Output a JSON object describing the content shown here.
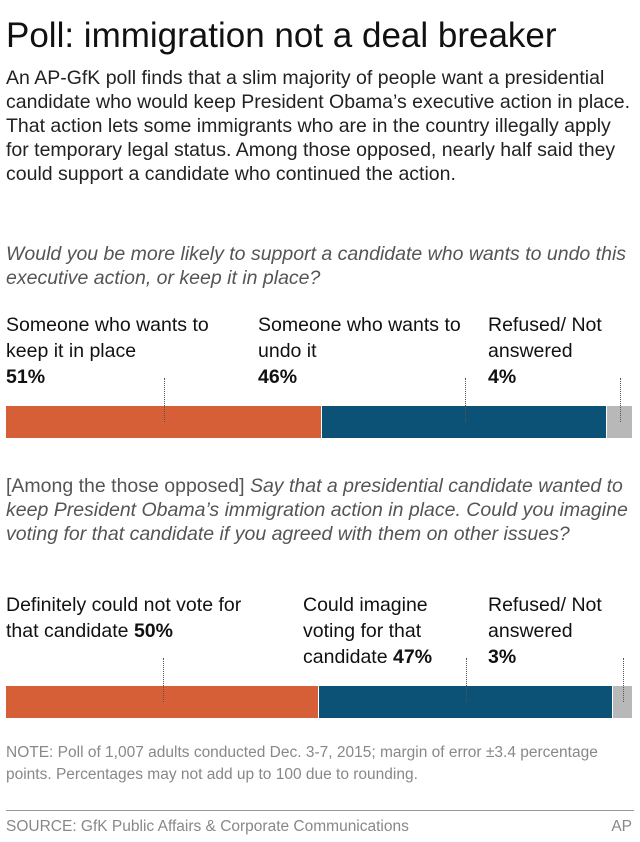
{
  "title": "Poll: immigration not a deal breaker",
  "intro": "An AP-GfK poll finds that a slim majority of people want a presidential candidate who would keep President Obama’s executive action in place. That action lets some immigrants who are in the country illegally apply for temporary legal status. Among those opposed, nearly half said they could support a candidate who continued the action.",
  "chart_data": [
    {
      "type": "stacked-bar",
      "question": "Would you be more likely to support a candidate who wants to undo this executive action, or keep it in place?",
      "series": [
        {
          "name": "Someone who wants to keep it in place",
          "color": "#d65f38",
          "values": [
            51
          ],
          "value_labels": [
            "51%"
          ]
        },
        {
          "name": "Someone who wants to undo it",
          "color": "#0c5276",
          "values": [
            46
          ],
          "value_labels": [
            "46%"
          ]
        },
        {
          "name": "Refused/ Not answered",
          "color": "#b8b8b8",
          "values": [
            4
          ],
          "value_labels": [
            "4%"
          ]
        }
      ]
    },
    {
      "type": "stacked-bar",
      "question_prefix": "[Among the those opposed]",
      "question": "Say that a presidential candidate wanted to keep President Obama’s immigration action in place. Could you imagine voting for that candidate if you agreed with them on other issues?",
      "series": [
        {
          "name": "Definitely could not vote for that candidate",
          "color": "#d65f38",
          "values": [
            50
          ],
          "value_labels": [
            "50%"
          ]
        },
        {
          "name": "Could imagine voting for that candidate",
          "color": "#0c5276",
          "values": [
            47
          ],
          "value_labels": [
            "47%"
          ]
        },
        {
          "name": "Refused/ Not answered",
          "color": "#b8b8b8",
          "values": [
            3
          ],
          "value_labels": [
            "3%"
          ]
        }
      ]
    }
  ],
  "note": "NOTE: Poll of 1,007 adults conducted Dec. 3-7, 2015; margin of error ±3.4 percentage points. Percentages may not add up to 100 due to rounding.",
  "source": "SOURCE: GfK Public Affairs & Corporate Communications",
  "credit": "AP"
}
